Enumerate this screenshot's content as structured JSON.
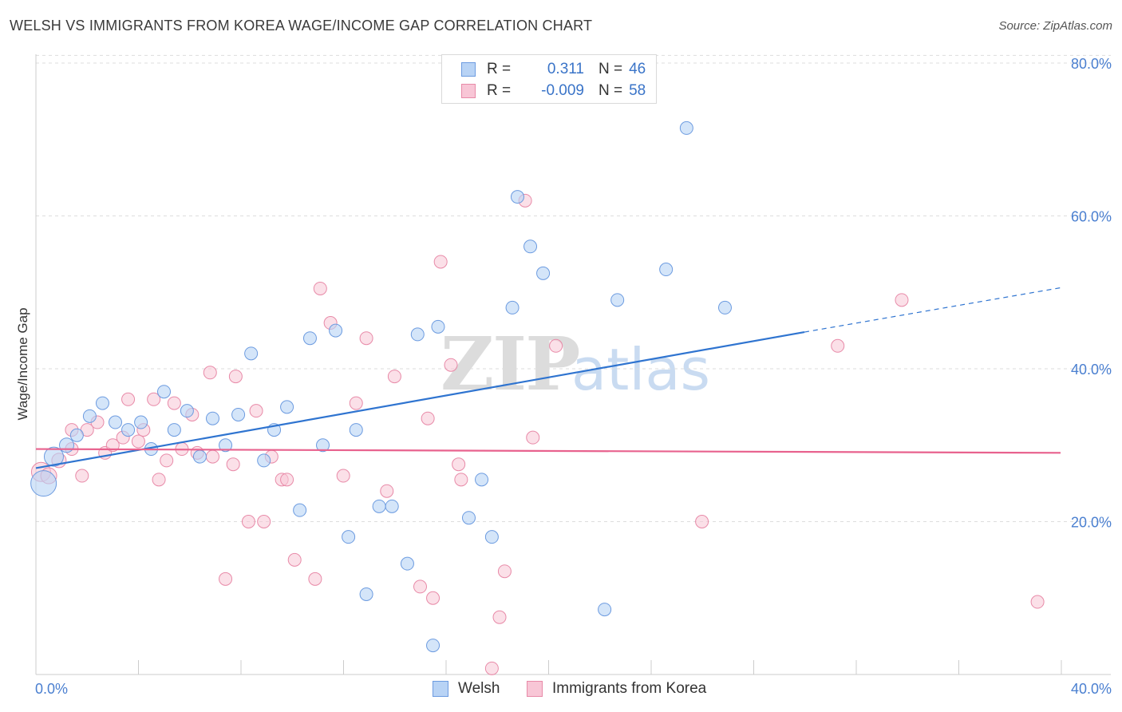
{
  "title": "WELSH VS IMMIGRANTS FROM KOREA WAGE/INCOME GAP CORRELATION CHART",
  "source": "Source: ZipAtlas.com",
  "watermark": {
    "zip": "ZIP",
    "atlas": "atlas"
  },
  "legend": {
    "rows": [
      {
        "r_label": "R =",
        "r_value": "0.311",
        "n_label": "N =",
        "n_value": "46"
      },
      {
        "r_label": "R =",
        "r_value": "-0.009",
        "n_label": "N =",
        "n_value": "58"
      }
    ]
  },
  "bottom_legend": {
    "series1": "Welsh",
    "series2": "Immigrants from Korea"
  },
  "colors": {
    "welsh_fill": "#b8d3f5",
    "welsh_stroke": "#6c9be0",
    "welsh_line": "#2f74d0",
    "korea_fill": "#f8c6d6",
    "korea_stroke": "#e88aa8",
    "korea_line": "#e8628e",
    "tick_text": "#4a7fd0",
    "grid": "#dddddd"
  },
  "chart_data": {
    "type": "scatter",
    "title": "WELSH VS IMMIGRANTS FROM KOREA WAGE/INCOME GAP CORRELATION CHART",
    "xlabel": "",
    "ylabel": "Wage/Income Gap",
    "xlim": [
      0,
      40
    ],
    "ylim": [
      0,
      80
    ],
    "x_tick_labels": [
      "0.0%",
      "40.0%"
    ],
    "y_ticks": [
      20,
      40,
      60,
      80
    ],
    "y_tick_labels": [
      "20.0%",
      "40.0%",
      "60.0%",
      "80.0%"
    ],
    "grid": true,
    "legend_position": "top-center",
    "series": [
      {
        "name": "Welsh",
        "r": 0.311,
        "n": 46,
        "trend": {
          "x1": 0,
          "y1": 27.0,
          "x2": 30.0,
          "y2": 44.8,
          "dash_x2": 40,
          "dash_y2": 50.6
        },
        "points": [
          [
            0.3,
            25.0,
            16
          ],
          [
            0.7,
            28.5,
            12
          ],
          [
            1.2,
            30.0,
            9
          ],
          [
            1.6,
            31.3,
            8
          ],
          [
            2.1,
            33.8,
            8
          ],
          [
            2.6,
            35.5,
            8
          ],
          [
            3.1,
            33.0,
            8
          ],
          [
            3.6,
            32.0,
            8
          ],
          [
            4.1,
            33.0,
            8
          ],
          [
            4.5,
            29.5,
            8
          ],
          [
            5.0,
            37.0,
            8
          ],
          [
            5.4,
            32.0,
            8
          ],
          [
            5.9,
            34.5,
            8
          ],
          [
            6.4,
            28.5,
            8
          ],
          [
            6.9,
            33.5,
            8
          ],
          [
            7.4,
            30.0,
            8
          ],
          [
            7.9,
            34.0,
            8
          ],
          [
            8.4,
            42.0,
            8
          ],
          [
            8.9,
            28.0,
            8
          ],
          [
            9.3,
            32.0,
            8
          ],
          [
            9.8,
            35.0,
            8
          ],
          [
            10.3,
            21.5,
            8
          ],
          [
            10.7,
            44.0,
            8
          ],
          [
            11.2,
            30.0,
            8
          ],
          [
            11.7,
            45.0,
            8
          ],
          [
            12.2,
            18.0,
            8
          ],
          [
            12.5,
            32.0,
            8
          ],
          [
            12.9,
            10.5,
            8
          ],
          [
            13.4,
            22.0,
            8
          ],
          [
            13.9,
            22.0,
            8
          ],
          [
            14.5,
            14.5,
            8
          ],
          [
            14.9,
            44.5,
            8
          ],
          [
            15.5,
            3.8,
            8
          ],
          [
            15.7,
            45.5,
            8
          ],
          [
            16.9,
            20.5,
            8
          ],
          [
            17.4,
            25.5,
            8
          ],
          [
            17.8,
            18.0,
            8
          ],
          [
            18.6,
            48.0,
            8
          ],
          [
            18.8,
            62.5,
            8
          ],
          [
            19.3,
            56.0,
            8
          ],
          [
            19.8,
            52.5,
            8
          ],
          [
            22.2,
            8.5,
            8
          ],
          [
            22.7,
            49.0,
            8
          ],
          [
            24.6,
            53.0,
            8
          ],
          [
            25.4,
            71.5,
            8
          ],
          [
            26.9,
            48.0,
            8
          ]
        ]
      },
      {
        "name": "Immigrants from Korea",
        "r": -0.009,
        "n": 58,
        "trend": {
          "x1": 0,
          "y1": 29.5,
          "x2": 40,
          "y2": 29.0
        },
        "points": [
          [
            0.2,
            26.5,
            12
          ],
          [
            0.5,
            26.0,
            10
          ],
          [
            0.9,
            28.0,
            9
          ],
          [
            1.4,
            29.5,
            8
          ],
          [
            1.4,
            32.0,
            8
          ],
          [
            1.8,
            26.0,
            8
          ],
          [
            2.0,
            32.0,
            8
          ],
          [
            2.4,
            33.0,
            8
          ],
          [
            2.7,
            29.0,
            8
          ],
          [
            3.0,
            30.0,
            8
          ],
          [
            3.4,
            31.0,
            8
          ],
          [
            3.6,
            36.0,
            8
          ],
          [
            4.0,
            30.5,
            8
          ],
          [
            4.2,
            32.0,
            8
          ],
          [
            4.6,
            36.0,
            8
          ],
          [
            4.8,
            25.5,
            8
          ],
          [
            5.1,
            28.0,
            8
          ],
          [
            5.4,
            35.5,
            8
          ],
          [
            5.7,
            29.5,
            8
          ],
          [
            6.1,
            34.0,
            8
          ],
          [
            6.3,
            29.0,
            8
          ],
          [
            6.8,
            39.5,
            8
          ],
          [
            6.9,
            28.5,
            8
          ],
          [
            7.4,
            12.5,
            8
          ],
          [
            7.7,
            27.5,
            8
          ],
          [
            7.8,
            39.0,
            8
          ],
          [
            8.3,
            20.0,
            8
          ],
          [
            8.6,
            34.5,
            8
          ],
          [
            8.9,
            20.0,
            8
          ],
          [
            9.2,
            28.5,
            8
          ],
          [
            9.6,
            25.5,
            8
          ],
          [
            9.8,
            25.5,
            8
          ],
          [
            10.1,
            15.0,
            8
          ],
          [
            10.9,
            12.5,
            8
          ],
          [
            11.1,
            50.5,
            8
          ],
          [
            11.5,
            46.0,
            8
          ],
          [
            12.0,
            26.0,
            8
          ],
          [
            12.5,
            35.5,
            8
          ],
          [
            12.9,
            44.0,
            8
          ],
          [
            13.7,
            24.0,
            8
          ],
          [
            14.0,
            39.0,
            8
          ],
          [
            15.0,
            11.5,
            8
          ],
          [
            15.3,
            33.5,
            8
          ],
          [
            15.5,
            10.0,
            8
          ],
          [
            15.8,
            54.0,
            8
          ],
          [
            16.2,
            40.5,
            8
          ],
          [
            16.5,
            27.5,
            8
          ],
          [
            16.6,
            25.5,
            8
          ],
          [
            17.8,
            0.8,
            8
          ],
          [
            18.1,
            7.5,
            8
          ],
          [
            18.3,
            13.5,
            8
          ],
          [
            19.1,
            62.0,
            8
          ],
          [
            19.4,
            31.0,
            8
          ],
          [
            20.3,
            43.0,
            8
          ],
          [
            26.0,
            20.0,
            8
          ],
          [
            31.3,
            43.0,
            8
          ],
          [
            33.8,
            49.0,
            8
          ],
          [
            39.1,
            9.5,
            8
          ]
        ]
      }
    ]
  }
}
